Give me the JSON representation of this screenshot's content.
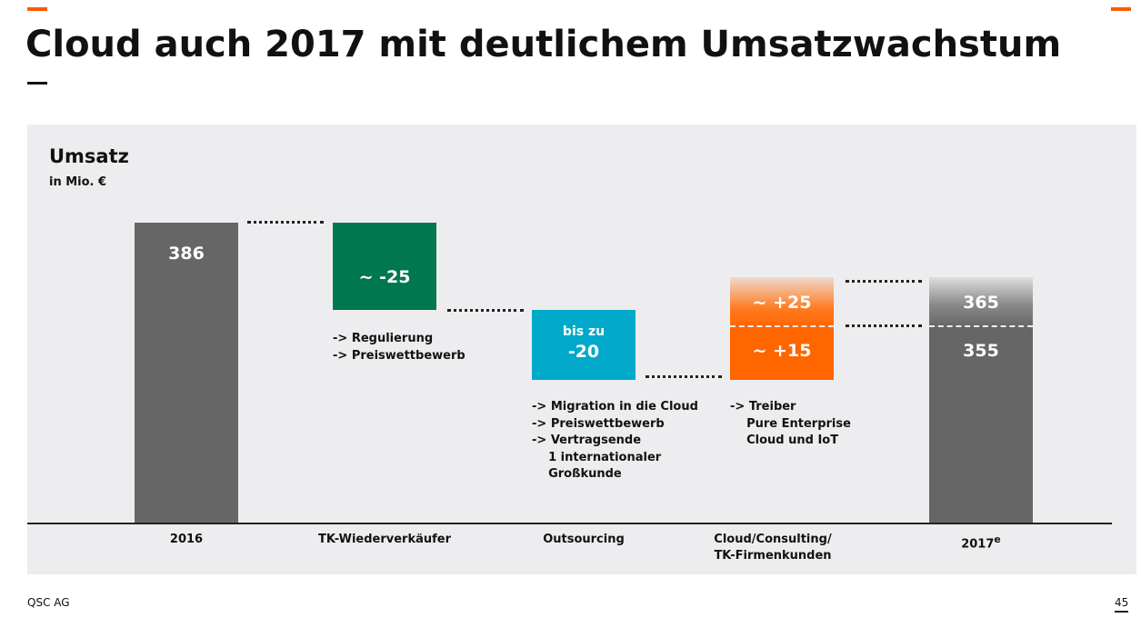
{
  "slide": {
    "title": "Cloud auch 2017 mit deutlichem Umsatzwachstum",
    "footer": "QSC AG",
    "page_number": "45",
    "accent_color": "#ff5a00"
  },
  "chart_data": {
    "type": "waterfall",
    "title": "Umsatz",
    "subtitle": "in Mio. €",
    "categories": [
      "2016",
      "TK-Wiederverkäufer",
      "Outsourcing",
      "Cloud/Consulting/ TK-Firmenkunden",
      "2017e"
    ],
    "category_superscript": {
      "4": "e"
    },
    "values": [
      386,
      -25,
      -20,
      {
        "low": 15,
        "high": 25
      },
      {
        "low": 355,
        "high": 365
      }
    ],
    "data_labels": [
      "386",
      "~ -25",
      [
        "bis zu",
        "-20"
      ],
      [
        "~ +25",
        "~ +15"
      ],
      [
        "365",
        "355"
      ]
    ],
    "colors": [
      "#666666",
      "#00774e",
      "#00a9ca",
      "#ff6600",
      "#666666"
    ],
    "notes": [
      "",
      "-> Regulierung\n-> Preiswettbewerb",
      "-> Migration in die Cloud\n-> Preiswettbewerb\n-> Vertragsende\n    1 internationaler\n    Großkunde",
      "-> Treiber\n    Pure Enterprise\n    Cloud und IoT",
      ""
    ]
  }
}
